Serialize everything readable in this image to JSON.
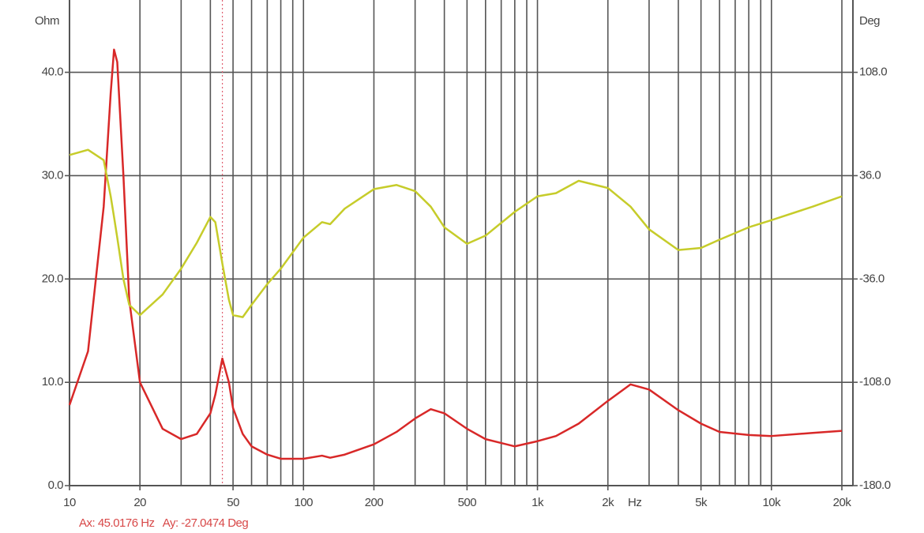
{
  "chart_data": {
    "type": "line",
    "xscale": "log",
    "x_label": "Hz",
    "y_label": "Ohm",
    "y2_label": "Deg",
    "x": [
      10,
      12,
      14,
      15,
      15.5,
      16,
      17,
      18,
      20,
      25,
      30,
      35,
      40,
      42,
      45,
      48,
      50,
      55,
      60,
      70,
      80,
      100,
      120,
      130,
      150,
      200,
      250,
      300,
      350,
      400,
      500,
      600,
      800,
      1000,
      1200,
      1500,
      2000,
      2500,
      3000,
      4000,
      5000,
      6000,
      8000,
      10000,
      15000,
      20000
    ],
    "series": [
      {
        "color": "#d82828",
        "values": [
          7.8,
          13,
          27,
          38,
          42.2,
          41,
          30,
          18,
          10,
          5.5,
          4.5,
          5,
          7,
          8.8,
          12.3,
          10,
          7.5,
          5,
          3.8,
          3,
          2.6,
          2.6,
          2.9,
          2.7,
          3,
          4,
          5.2,
          6.5,
          7.4,
          7,
          5.5,
          4.5,
          3.8,
          4.3,
          4.8,
          6,
          8.2,
          9.8,
          9.3,
          7.3,
          6,
          5.2,
          4.9,
          4.8,
          5.1,
          5.3
        ]
      },
      {
        "color": "#c6cc2a",
        "axis": "y2",
        "values": [
          50.4,
          54,
          46.8,
          21.6,
          7.2,
          -7.2,
          -36,
          -54,
          -61.2,
          -46.8,
          -28.8,
          -10.8,
          7.2,
          3.6,
          -25.2,
          -50.4,
          -61.2,
          -62.6,
          -54,
          -39.6,
          -28.8,
          -7.2,
          3.6,
          2.2,
          13,
          26.6,
          29.5,
          25.2,
          14.4,
          0,
          -11.5,
          -5.8,
          10.8,
          21.6,
          23.8,
          32.4,
          27.4,
          14.4,
          -1.4,
          -15.8,
          -14.4,
          -8.6,
          0,
          5,
          14.4,
          21.6
        ]
      }
    ],
    "xlim": [
      10,
      20000
    ],
    "xticks": [
      10,
      20,
      50,
      100,
      200,
      500,
      {
        "value": 1000,
        "label": "1k"
      },
      {
        "value": 2000,
        "label": "2k"
      },
      {
        "value": 5000,
        "label": "5k"
      },
      {
        "value": 10000,
        "label": "10k"
      },
      {
        "value": 20000,
        "label": "20k"
      }
    ],
    "xgrid": [
      10,
      20,
      30,
      40,
      50,
      60,
      70,
      80,
      90,
      100,
      200,
      300,
      400,
      500,
      600,
      700,
      800,
      900,
      1000,
      2000,
      3000,
      4000,
      5000,
      6000,
      7000,
      8000,
      9000,
      10000,
      20000
    ],
    "ylim": [
      0,
      47
    ],
    "yticks": [
      {
        "value": 0,
        "label": "0.0"
      },
      {
        "value": 10,
        "label": "10.0"
      },
      {
        "value": 20,
        "label": "20.0"
      },
      {
        "value": 30,
        "label": "30.0"
      },
      {
        "value": 40,
        "label": "40.0"
      }
    ],
    "y2lim": [
      -180,
      158.4
    ],
    "y2ticks": [
      {
        "value": -180,
        "label": "-180.0"
      },
      {
        "value": -108,
        "label": "-108.0"
      },
      {
        "value": -36,
        "label": "-36.0"
      },
      {
        "value": 36,
        "label": "36.0"
      },
      {
        "value": 108,
        "label": "108.0"
      }
    ],
    "grid": true,
    "cursor": {
      "x": 45.0176,
      "label": "Ax: 45.0176 Hz   Ay: -27.0474 Deg"
    }
  }
}
